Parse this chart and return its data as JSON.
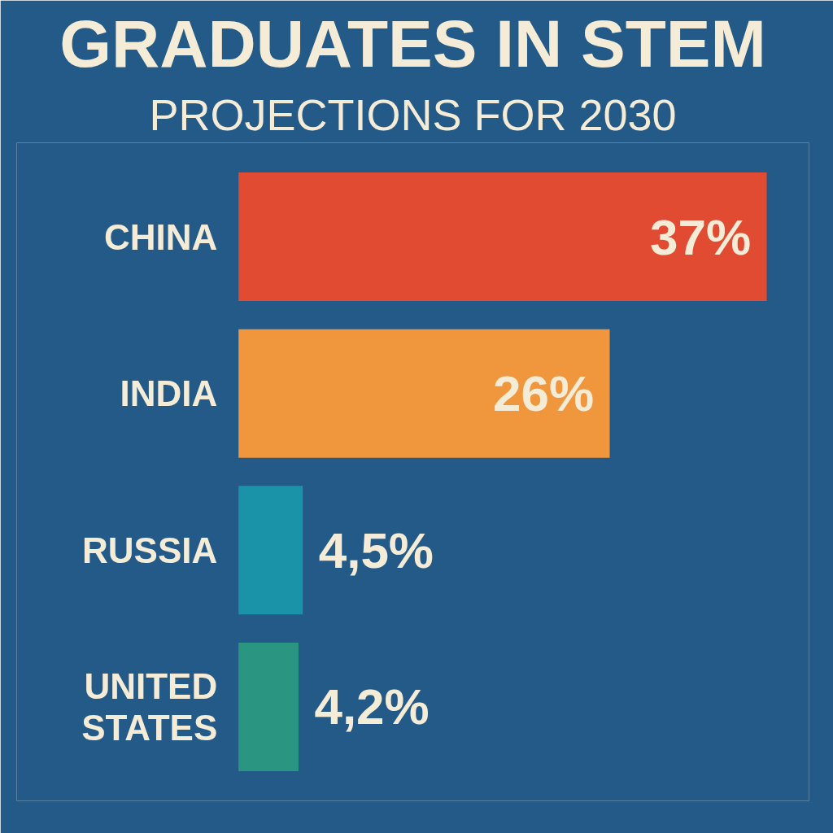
{
  "chart_data": {
    "type": "bar",
    "orientation": "horizontal",
    "title": "GRADUATES IN STEM",
    "subtitle": "PROJECTIONS FOR 2030",
    "categories": [
      "CHINA",
      "INDIA",
      "RUSSIA",
      "UNITED STATES"
    ],
    "values": [
      37,
      26,
      4.5,
      4.2
    ],
    "value_labels": [
      "37%",
      "26%",
      "4,5%",
      "4,2%"
    ],
    "colors": [
      "#e04b32",
      "#f0963c",
      "#1a93a8",
      "#2a9580"
    ],
    "grid": false,
    "tick_labels": false
  }
}
